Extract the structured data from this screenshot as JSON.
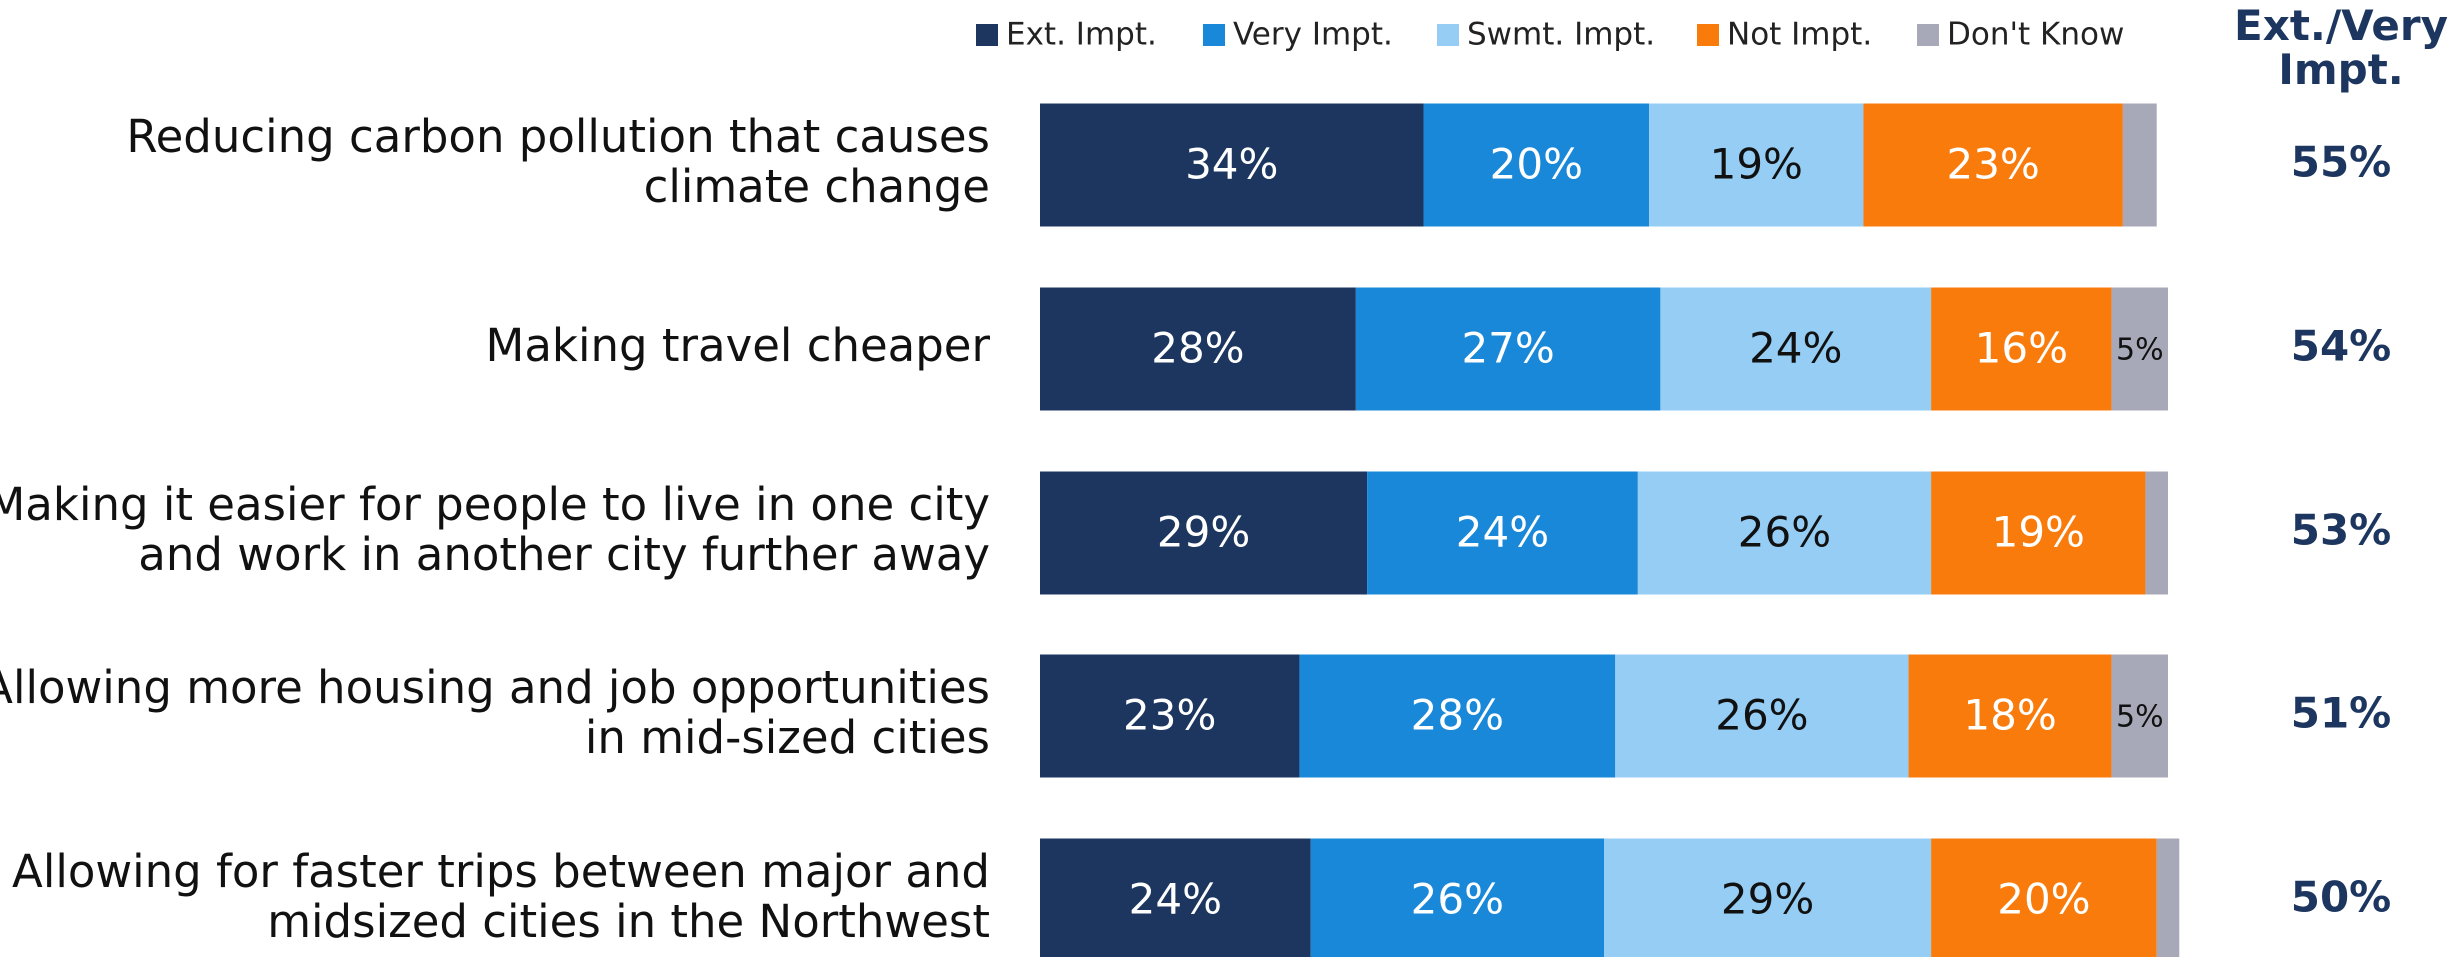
{
  "chart_data": {
    "type": "stacked_barh",
    "categories": [
      [
        "Reducing carbon pollution that causes",
        "climate change"
      ],
      [
        "Making travel cheaper"
      ],
      [
        "Making it easier for people to live in one city",
        "and work in another city further away"
      ],
      [
        "Allowing more housing and job opportunities",
        "in mid-sized cities"
      ],
      [
        "Allowing for faster trips between major and",
        "midsized cities in the Northwest"
      ]
    ],
    "xlim": [
      0,
      100
    ],
    "series": [
      {
        "name": "Ext. Impt.",
        "color": "#1c365f",
        "label_color": "#ffffff",
        "values": [
          34,
          28,
          29,
          23,
          24
        ],
        "value_labels": [
          "34%",
          "28%",
          "29%",
          "23%",
          "24%"
        ]
      },
      {
        "name": "Very Impt.",
        "color": "#1a88d8",
        "label_color": "#ffffff",
        "values": [
          20,
          27,
          24,
          28,
          26
        ],
        "value_labels": [
          "20%",
          "27%",
          "24%",
          "28%",
          "26%"
        ]
      },
      {
        "name": "Swmt. Impt.",
        "color": "#95cdf4",
        "label_color": "#111111",
        "values": [
          19,
          24,
          26,
          26,
          29
        ],
        "value_labels": [
          "19%",
          "24%",
          "26%",
          "26%",
          "29%"
        ]
      },
      {
        "name": "Not Impt.",
        "color": "#f97b0c",
        "label_color": "#ffffff",
        "values": [
          23,
          16,
          19,
          18,
          20
        ],
        "value_labels": [
          "23%",
          "16%",
          "19%",
          "18%",
          "20%"
        ]
      },
      {
        "name": "Don't Know",
        "color": "#a7a9b9",
        "label_color": "#111111",
        "values": [
          3,
          5,
          2,
          5,
          2
        ],
        "value_labels": [
          null,
          "5%",
          null,
          "5%",
          null
        ]
      }
    ],
    "summary": {
      "title": "Ext./Very Impt.",
      "color": "#1c365f",
      "values": [
        55,
        54,
        53,
        51,
        50
      ],
      "value_labels": [
        "55%",
        "54%",
        "53%",
        "51%",
        "50%"
      ]
    }
  }
}
